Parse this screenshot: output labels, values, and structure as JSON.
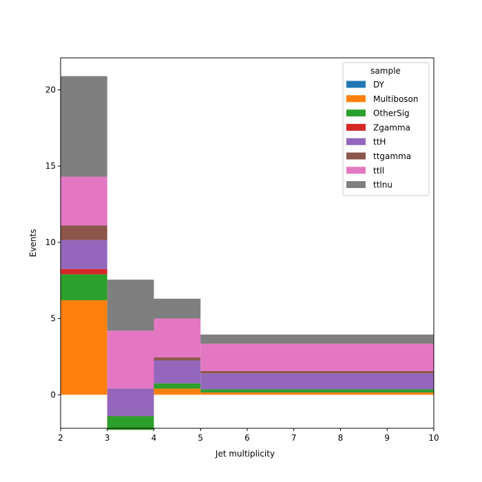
{
  "chart_data": {
    "type": "bar",
    "stacked": true,
    "histogram": true,
    "bin_edges": [
      2,
      3,
      4,
      5,
      10
    ],
    "xlabel": "Jet multiplicity",
    "ylabel": "Events",
    "xlim": [
      2,
      10
    ],
    "ylim": [
      -2.2,
      22.1
    ],
    "xticks": [
      2,
      3,
      4,
      5,
      6,
      7,
      8,
      9,
      10
    ],
    "yticks": [
      0,
      5,
      10,
      15,
      20
    ],
    "grid": false,
    "legend": {
      "title": "sample",
      "placement": "top-right"
    },
    "series": [
      {
        "name": "DY",
        "color": "#1f77b4",
        "values": [
          0.0,
          0.0,
          0.0,
          0.0
        ]
      },
      {
        "name": "Multiboson",
        "color": "#ff7f0e",
        "values": [
          6.2,
          -2.3,
          0.4,
          0.15
        ]
      },
      {
        "name": "OtherSig",
        "color": "#2ca02c",
        "values": [
          1.7,
          0.9,
          0.35,
          0.2
        ]
      },
      {
        "name": "Zgamma",
        "color": "#d62728",
        "values": [
          0.35,
          0.0,
          0.0,
          0.0
        ]
      },
      {
        "name": "ttH",
        "color": "#9467bd",
        "values": [
          1.9,
          1.8,
          1.5,
          1.05
        ]
      },
      {
        "name": "ttgamma",
        "color": "#8c564b",
        "values": [
          0.95,
          0.0,
          0.2,
          0.15
        ]
      },
      {
        "name": "ttll",
        "color": "#e377c2",
        "values": [
          3.2,
          3.8,
          2.55,
          1.8
        ]
      },
      {
        "name": "ttlnu",
        "color": "#7f7f7f",
        "values": [
          6.6,
          3.35,
          1.3,
          0.6
        ]
      }
    ]
  }
}
